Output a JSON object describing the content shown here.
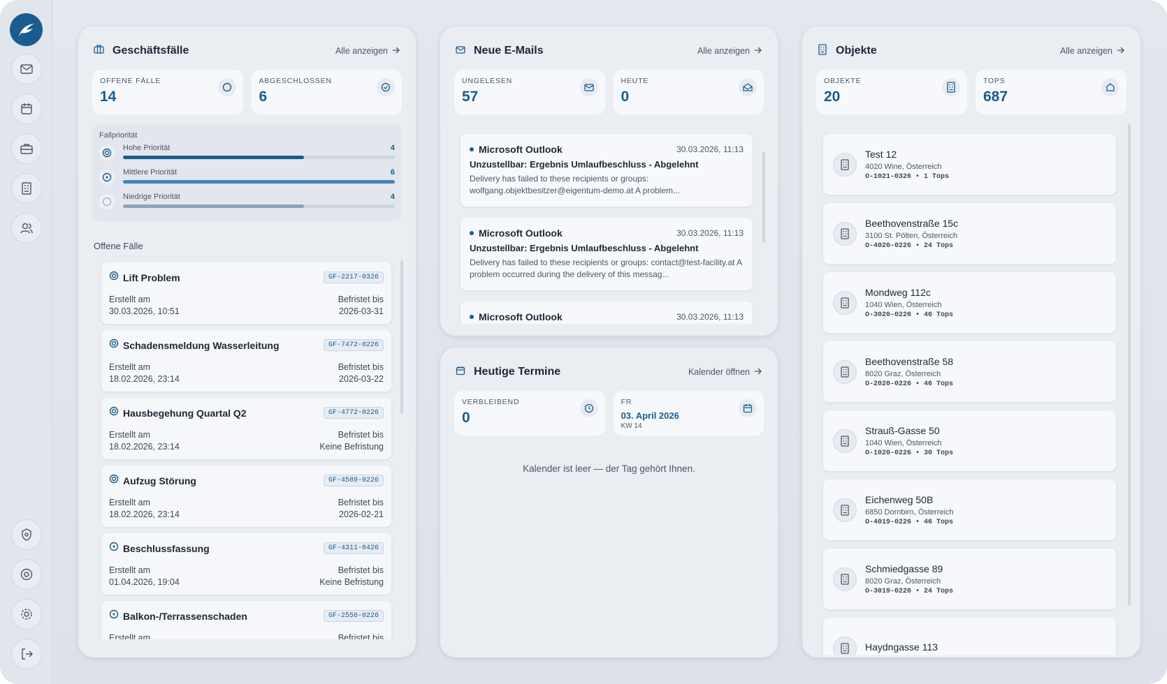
{
  "cases": {
    "title": "Geschäftsfälle",
    "link": "Alle anzeigen",
    "stats": [
      {
        "label": "OFFENE FÄLLE",
        "value": 14
      },
      {
        "label": "ABGESCHLOSSEN",
        "value": 6
      }
    ],
    "priority": {
      "title": "Fallpriorität",
      "items": [
        {
          "name": "Hohe Priorität",
          "value": 4
        },
        {
          "name": "Mittlere Priorität",
          "value": 6
        },
        {
          "name": "Niedrige Priorität",
          "value": 4
        }
      ]
    },
    "section": "Offene Fälle",
    "items": [
      {
        "title": "Lift Problem",
        "code": "GF-2217-0326",
        "created_label": "Erstellt am",
        "created": "30.03.2026, 10:51",
        "due_label": "Befristet bis",
        "due": "2026-03-31"
      },
      {
        "title": "Schadensmeldung Wasserleitung",
        "code": "GF-7472-0226",
        "created_label": "Erstellt am",
        "created": "18.02.2026, 23:14",
        "due_label": "Befristet bis",
        "due": "2026-03-22"
      },
      {
        "title": "Hausbegehung Quartal Q2",
        "code": "GF-4772-0226",
        "created_label": "Erstellt am",
        "created": "18.02.2026, 23:14",
        "due_label": "Befristet bis",
        "due": "Keine Befristung"
      },
      {
        "title": "Aufzug Störung",
        "code": "GF-4589-0226",
        "created_label": "Erstellt am",
        "created": "18.02.2026, 23:14",
        "due_label": "Befristet bis",
        "due": "2026-02-21"
      },
      {
        "title": "Beschlussfassung",
        "code": "GF-4311-0426",
        "created_label": "Erstellt am",
        "created": "01.04.2026, 19:04",
        "due_label": "Befristet bis",
        "due": "Keine Befristung"
      },
      {
        "title": "Balkon-/Terrassenschaden",
        "code": "GF-2556-0226",
        "created_label": "Erstellt am",
        "created": "",
        "due_label": "Befristet bis",
        "due": ""
      }
    ]
  },
  "emails": {
    "title": "Neue E-Mails",
    "link": "Alle anzeigen",
    "stats": [
      {
        "label": "UNGELESEN",
        "value": 57
      },
      {
        "label": "HEUTE",
        "value": 0
      }
    ],
    "items": [
      {
        "sender": "Microsoft Outlook",
        "date": "30.03.2026, 11:13",
        "subject": "Unzustellbar: Ergebnis Umlaufbeschluss - Abgelehnt",
        "preview": "Delivery has failed to these recipients or groups: wolfgang.objektbesitzer@eigentum-demo.at A problem..."
      },
      {
        "sender": "Microsoft Outlook",
        "date": "30.03.2026, 11:13",
        "subject": "Unzustellbar: Ergebnis Umlaufbeschluss - Abgelehnt",
        "preview": "Delivery has failed to these recipients or groups:  contact@test-facility.at A problem occurred during the delivery of this messag..."
      },
      {
        "sender": "Microsoft Outlook",
        "date": "30.03.2026, 11:13",
        "subject": "",
        "preview": ""
      }
    ]
  },
  "appointments": {
    "title": "Heutige Termine",
    "link": "Kalender öffnen",
    "stat": {
      "label": "VERBLEIBEND",
      "value": 0
    },
    "day": {
      "weekday": "FR",
      "date": "03. April 2026",
      "week": "KW 14"
    },
    "empty": "Kalender ist leer — der Tag gehört Ihnen."
  },
  "objects": {
    "title": "Objekte",
    "link": "Alle anzeigen",
    "stats": [
      {
        "label": "OBJEKTE",
        "value": 20
      },
      {
        "label": "TOPS",
        "value": 687
      }
    ],
    "items": [
      {
        "name": "Test 12",
        "address": "4020 Wine, Österreich",
        "meta": "O-1021-0326 • 1 Tops"
      },
      {
        "name": "Beethovenstraße 15c",
        "address": "3100 St. Pölten, Österreich",
        "meta": "O-4020-0226 • 24 Tops"
      },
      {
        "name": "Mondweg 112c",
        "address": "1040 Wien, Österreich",
        "meta": "O-3020-0226 • 46 Tops"
      },
      {
        "name": "Beethovenstraße 58",
        "address": "8020 Graz, Österreich",
        "meta": "O-2020-0226 • 46 Tops"
      },
      {
        "name": "Strauß-Gasse 50",
        "address": "1040 Wien, Österreich",
        "meta": "O-1020-0226 • 30 Tops"
      },
      {
        "name": "Eichenweg 50B",
        "address": "6850 Dornbirn, Österreich",
        "meta": "O-4019-0226 • 46 Tops"
      },
      {
        "name": "Schmiedgasse 89",
        "address": "8020 Graz, Österreich",
        "meta": "O-3019-0226 • 24 Tops"
      },
      {
        "name": "Haydngasse 113",
        "address": "",
        "meta": ""
      }
    ]
  }
}
